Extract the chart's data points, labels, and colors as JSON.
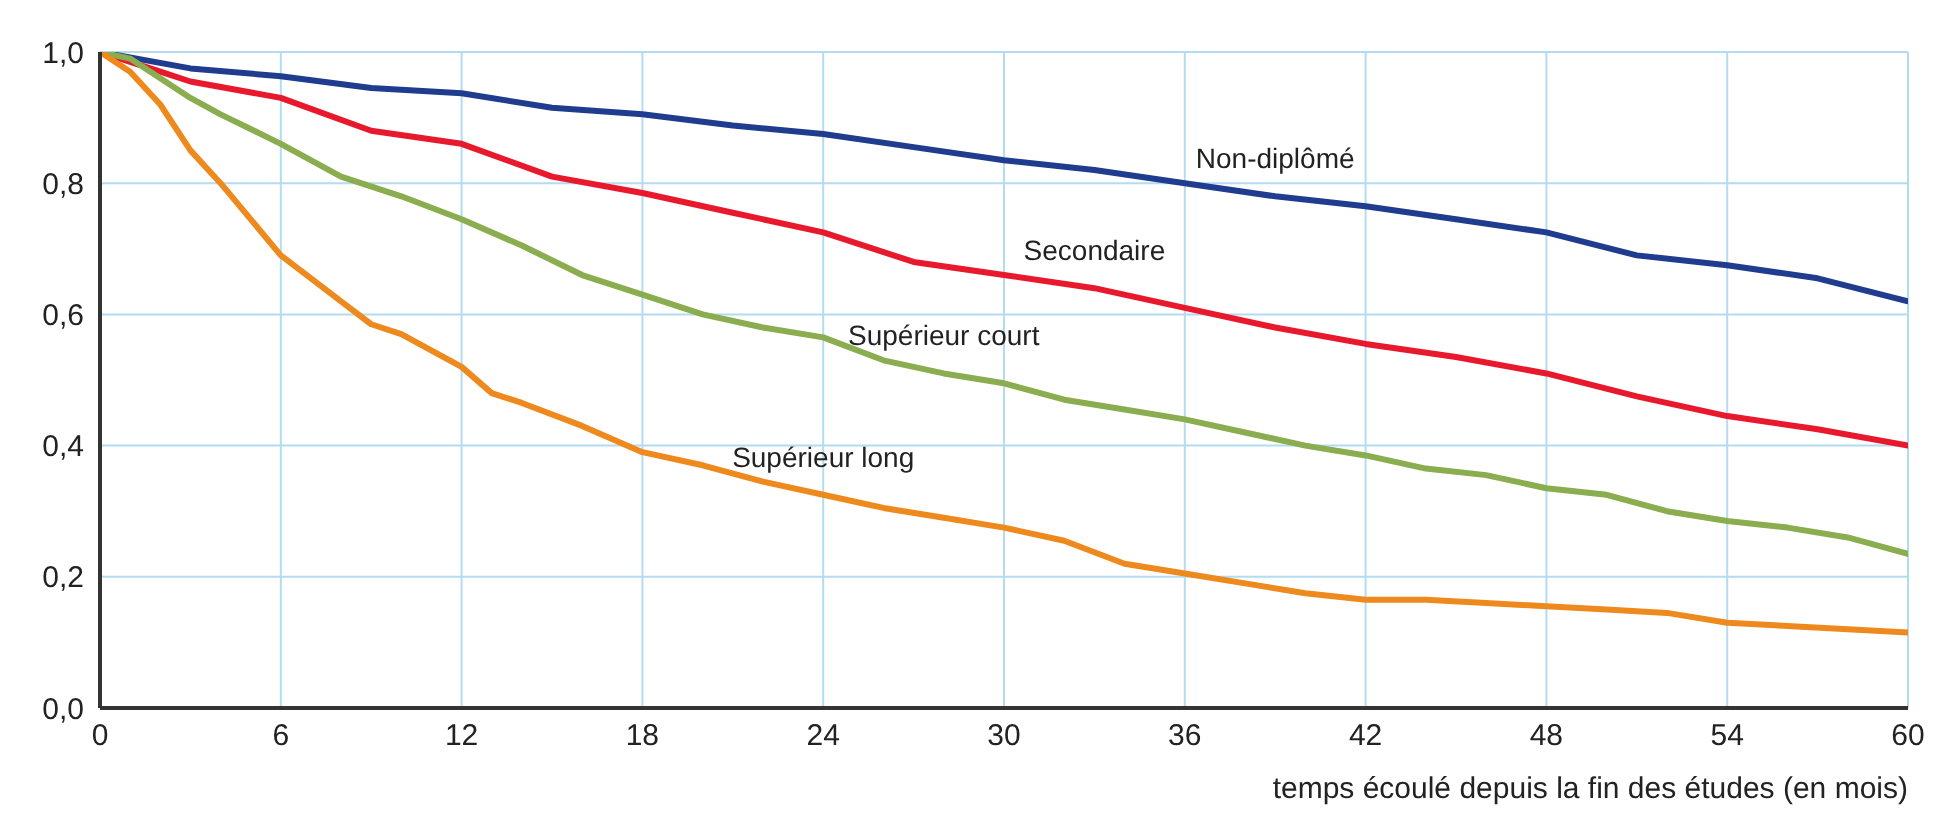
{
  "chart_data": {
    "type": "line",
    "xlabel": "temps écoulé depuis la fin des études (en mois)",
    "xlim": [
      0,
      60
    ],
    "xticks": [
      0,
      6,
      12,
      18,
      24,
      30,
      36,
      42,
      48,
      54,
      60
    ],
    "ylim": [
      0,
      1
    ],
    "yticks": [
      {
        "value": 0,
        "label": "0,0"
      },
      {
        "value": 0.2,
        "label": "0,2"
      },
      {
        "value": 0.4,
        "label": "0,4"
      },
      {
        "value": 0.6,
        "label": "0,6"
      },
      {
        "value": 0.8,
        "label": "0,8"
      },
      {
        "value": 1,
        "label": "1,0"
      }
    ],
    "grid": true,
    "legend": false,
    "marker": "none",
    "line_style": "solid",
    "series": [
      {
        "name": "Non-diplômé",
        "color": "#1f3c8f",
        "x": [
          0,
          3,
          6,
          9,
          12,
          15,
          18,
          21,
          24,
          27,
          30,
          33,
          36,
          39,
          42,
          45,
          48,
          51,
          54,
          57,
          60
        ],
        "values": [
          1.0,
          0.975,
          0.963,
          0.945,
          0.937,
          0.915,
          0.905,
          0.888,
          0.875,
          0.855,
          0.835,
          0.82,
          0.8,
          0.78,
          0.765,
          0.745,
          0.725,
          0.69,
          0.675,
          0.655,
          0.62
        ]
      },
      {
        "name": "Secondaire",
        "color": "#e8192c",
        "x": [
          0,
          2,
          3,
          6,
          9,
          12,
          15,
          18,
          21,
          24,
          27,
          30,
          33,
          36,
          39,
          42,
          45,
          48,
          51,
          54,
          57,
          60
        ],
        "values": [
          1.0,
          0.97,
          0.955,
          0.93,
          0.88,
          0.86,
          0.81,
          0.785,
          0.755,
          0.725,
          0.68,
          0.66,
          0.64,
          0.61,
          0.58,
          0.555,
          0.535,
          0.51,
          0.475,
          0.445,
          0.425,
          0.4
        ]
      },
      {
        "name": "Supérieur court",
        "color": "#8aad4f",
        "x": [
          0,
          1,
          3,
          4,
          6,
          8,
          10,
          12,
          14,
          16,
          18,
          20,
          22,
          24,
          26,
          28,
          30,
          32,
          34,
          36,
          38,
          40,
          42,
          44,
          46,
          48,
          50,
          52,
          54,
          56,
          58,
          60
        ],
        "values": [
          1.0,
          0.99,
          0.93,
          0.905,
          0.86,
          0.81,
          0.78,
          0.745,
          0.705,
          0.66,
          0.63,
          0.6,
          0.58,
          0.565,
          0.53,
          0.51,
          0.495,
          0.47,
          0.455,
          0.44,
          0.42,
          0.4,
          0.385,
          0.365,
          0.355,
          0.335,
          0.325,
          0.3,
          0.285,
          0.275,
          0.26,
          0.235
        ]
      },
      {
        "name": "Supérieur long",
        "color": "#ee8a1d",
        "x": [
          0,
          1,
          2,
          3,
          4,
          6,
          8,
          9,
          10,
          12,
          13,
          14,
          16,
          18,
          20,
          22,
          24,
          26,
          28,
          30,
          32,
          34,
          36,
          38,
          40,
          42,
          44,
          46,
          48,
          50,
          52,
          54,
          56,
          58,
          60
        ],
        "values": [
          1.0,
          0.97,
          0.92,
          0.85,
          0.8,
          0.69,
          0.62,
          0.585,
          0.57,
          0.52,
          0.48,
          0.465,
          0.43,
          0.39,
          0.37,
          0.345,
          0.325,
          0.305,
          0.29,
          0.275,
          0.255,
          0.22,
          0.205,
          0.19,
          0.175,
          0.165,
          0.165,
          0.16,
          0.155,
          0.15,
          0.145,
          0.13,
          0.125,
          0.12,
          0.115
        ]
      }
    ]
  }
}
